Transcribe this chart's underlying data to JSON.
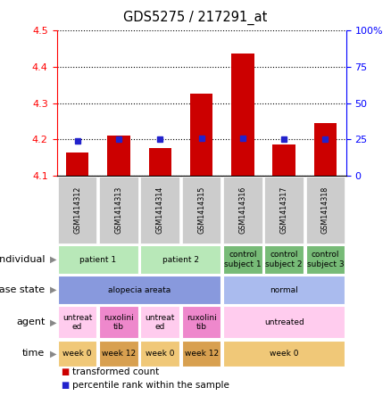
{
  "title": "GDS5275 / 217291_at",
  "samples": [
    "GSM1414312",
    "GSM1414313",
    "GSM1414314",
    "GSM1414315",
    "GSM1414316",
    "GSM1414317",
    "GSM1414318"
  ],
  "transformed_count": [
    4.165,
    4.21,
    4.175,
    4.325,
    4.435,
    4.185,
    4.245
  ],
  "percentile_rank": [
    24,
    25,
    25,
    26,
    26,
    25,
    25
  ],
  "ylim": [
    4.1,
    4.5
  ],
  "y2lim": [
    0,
    100
  ],
  "y_ticks": [
    4.1,
    4.2,
    4.3,
    4.4,
    4.5
  ],
  "y2_ticks": [
    0,
    25,
    50,
    75,
    100
  ],
  "bar_color": "#cc0000",
  "dot_color": "#2222cc",
  "individual_spans": [
    {
      "label": "patient 1",
      "start": 0,
      "end": 2,
      "color": "#b8e8b8"
    },
    {
      "label": "patient 2",
      "start": 2,
      "end": 4,
      "color": "#b8e8b8"
    },
    {
      "label": "control\nsubject 1",
      "start": 4,
      "end": 5,
      "color": "#77bb77"
    },
    {
      "label": "control\nsubject 2",
      "start": 5,
      "end": 6,
      "color": "#77bb77"
    },
    {
      "label": "control\nsubject 3",
      "start": 6,
      "end": 7,
      "color": "#77bb77"
    }
  ],
  "disease_spans": [
    {
      "label": "alopecia areata",
      "start": 0,
      "end": 4,
      "color": "#8899dd"
    },
    {
      "label": "normal",
      "start": 4,
      "end": 7,
      "color": "#aabbee"
    }
  ],
  "agent_spans": [
    {
      "label": "untreat\ned",
      "start": 0,
      "end": 1,
      "color": "#ffccee"
    },
    {
      "label": "ruxolini\ntib",
      "start": 1,
      "end": 2,
      "color": "#ee88cc"
    },
    {
      "label": "untreat\ned",
      "start": 2,
      "end": 3,
      "color": "#ffccee"
    },
    {
      "label": "ruxolini\ntib",
      "start": 3,
      "end": 4,
      "color": "#ee88cc"
    },
    {
      "label": "untreated",
      "start": 4,
      "end": 7,
      "color": "#ffccee"
    }
  ],
  "time_spans": [
    {
      "label": "week 0",
      "start": 0,
      "end": 1,
      "color": "#f0c878"
    },
    {
      "label": "week 12",
      "start": 1,
      "end": 2,
      "color": "#d8a050"
    },
    {
      "label": "week 0",
      "start": 2,
      "end": 3,
      "color": "#f0c878"
    },
    {
      "label": "week 12",
      "start": 3,
      "end": 4,
      "color": "#d8a050"
    },
    {
      "label": "week 0",
      "start": 4,
      "end": 7,
      "color": "#f0c878"
    }
  ],
  "row_labels": [
    "individual",
    "disease state",
    "agent",
    "time"
  ],
  "n_samples": 7,
  "fig_width": 4.38,
  "fig_height": 4.53
}
